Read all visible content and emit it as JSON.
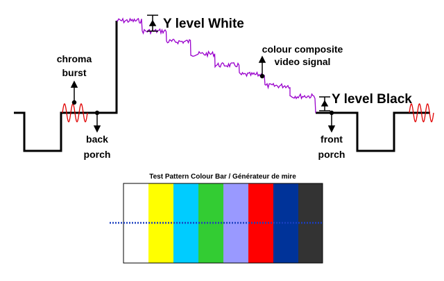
{
  "labels": {
    "y_level_white": "Y level White",
    "y_level_black": "Y level Black",
    "colour_composite": [
      "colour composite",
      "video signal"
    ],
    "chroma_burst": [
      "chroma",
      "burst"
    ],
    "back_porch": [
      "back",
      "porch"
    ],
    "front_porch": [
      "front",
      "porch"
    ]
  },
  "color_bar": {
    "title": "Test Pattern Colour Bar / Générateur de mire"
  }
}
